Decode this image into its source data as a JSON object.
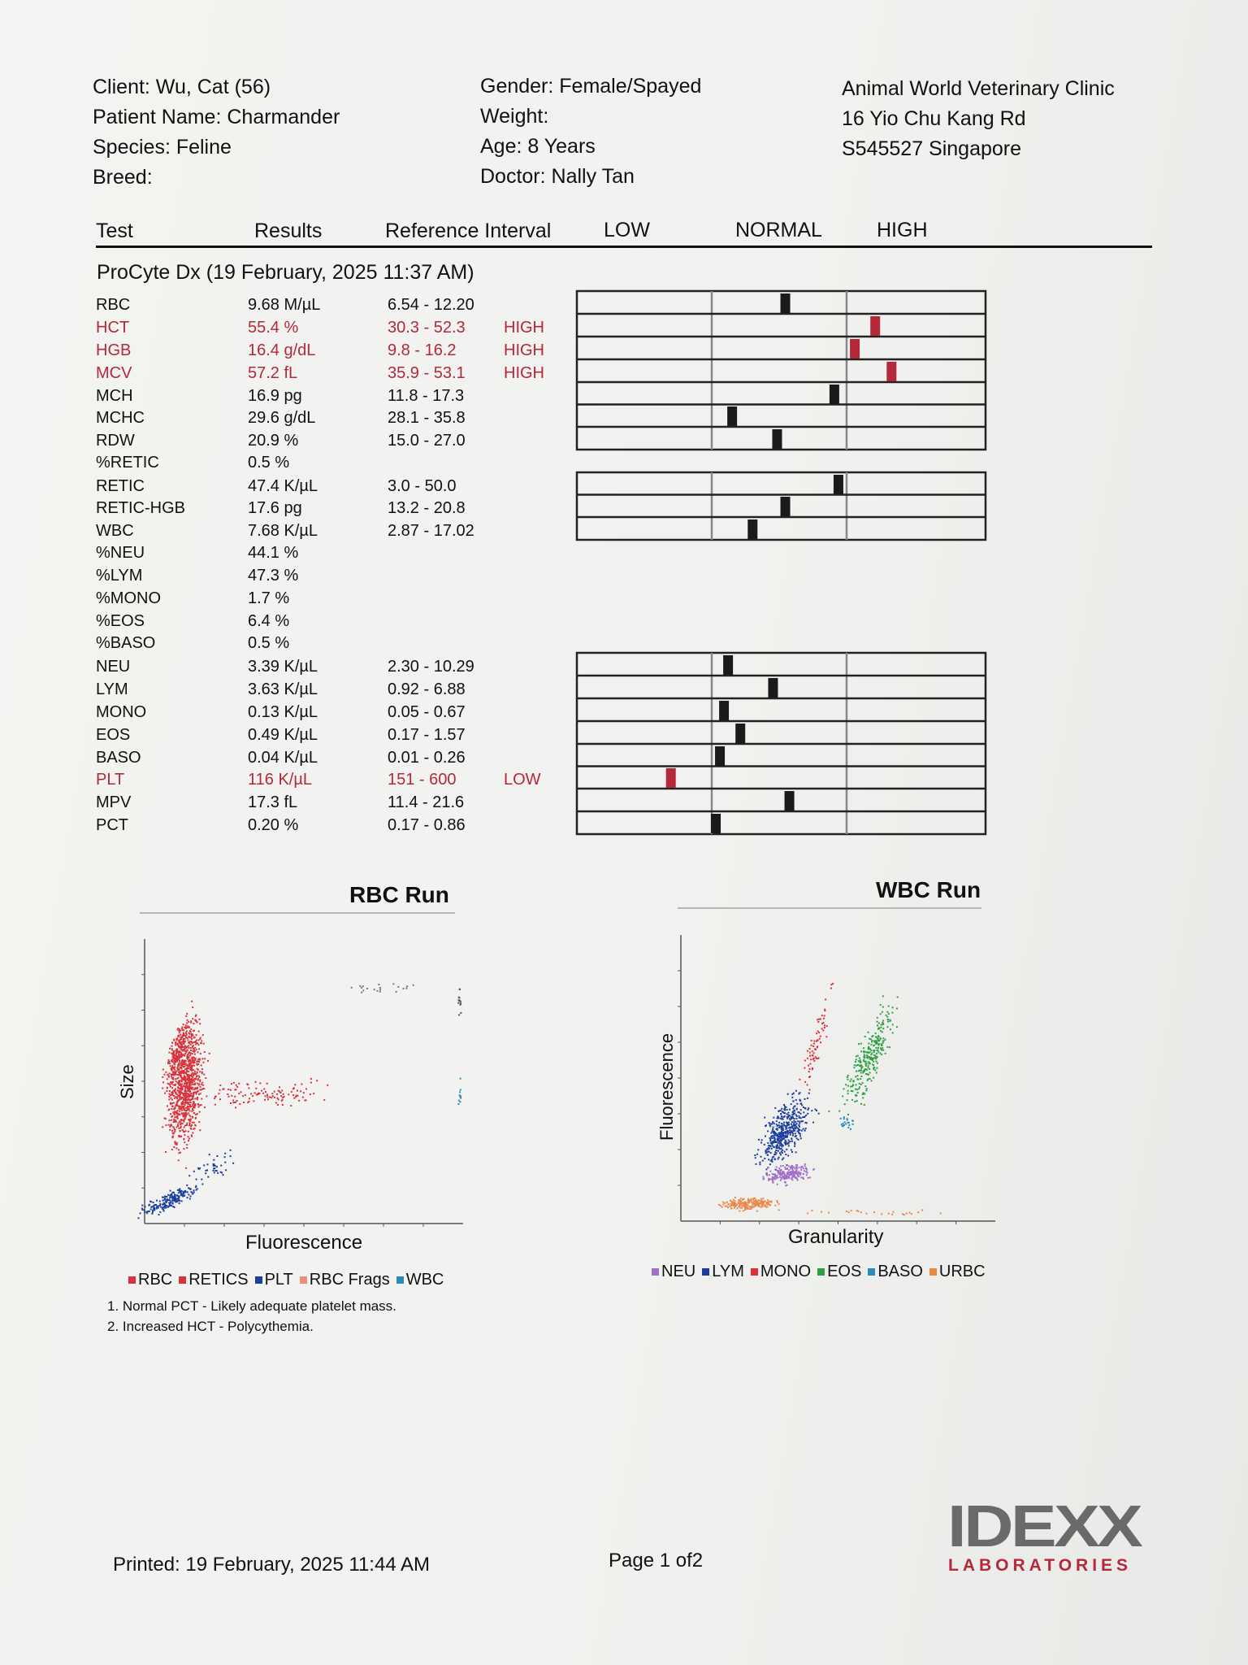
{
  "header": {
    "client": "Client: Wu, Cat (56)",
    "patient": "Patient Name: Charmander",
    "species": "Species: Feline",
    "breed": "Breed:",
    "gender": "Gender: Female/Spayed",
    "weight": "Weight:",
    "age": "Age: 8 Years",
    "doctor": "Doctor: Nally Tan",
    "clinic_name": "Animal World Veterinary Clinic",
    "clinic_addr1": "16 Yio Chu Kang Rd",
    "clinic_addr2": "S545527 Singapore"
  },
  "columns": {
    "test": "Test",
    "results": "Results",
    "reference": "Reference Interval",
    "low": "LOW",
    "normal": "NORMAL",
    "high": "HIGH"
  },
  "section_title": "ProCyte Dx (19 February, 2025 11:37 AM)",
  "rows": [
    {
      "test": "RBC",
      "result": "9.68 M/µL",
      "range": "6.54 - 12.20",
      "flag": "",
      "marker": 0.51,
      "abnormal": false
    },
    {
      "test": "HCT",
      "result": "55.4 %",
      "range": "30.3 - 52.3",
      "flag": "HIGH",
      "marker": 0.73,
      "abnormal": true
    },
    {
      "test": "HGB",
      "result": "16.4 g/dL",
      "range": "9.8 - 16.2",
      "flag": "HIGH",
      "marker": 0.68,
      "abnormal": true
    },
    {
      "test": "MCV",
      "result": "57.2 fL",
      "range": "35.9 - 53.1",
      "flag": "HIGH",
      "marker": 0.77,
      "abnormal": true
    },
    {
      "test": "MCH",
      "result": "16.9 pg",
      "range": "11.8 - 17.3",
      "flag": "",
      "marker": 0.63,
      "abnormal": false
    },
    {
      "test": "MCHC",
      "result": "29.6 g/dL",
      "range": "28.1 - 35.8",
      "flag": "",
      "marker": 0.38,
      "abnormal": false
    },
    {
      "test": "RDW",
      "result": "20.9 %",
      "range": "15.0 - 27.0",
      "flag": "",
      "marker": 0.49,
      "abnormal": false
    },
    {
      "test": "%RETIC",
      "result": "0.5 %",
      "range": "",
      "flag": "",
      "marker": null,
      "abnormal": false
    },
    {
      "test": "RETIC",
      "result": "47.4 K/µL",
      "range": "3.0 - 50.0",
      "flag": "",
      "marker": 0.64,
      "abnormal": false
    },
    {
      "test": "RETIC-HGB",
      "result": "17.6 pg",
      "range": "13.2 - 20.8",
      "flag": "",
      "marker": 0.51,
      "abnormal": false
    },
    {
      "test": "WBC",
      "result": "7.68 K/µL",
      "range": "2.87 - 17.02",
      "flag": "",
      "marker": 0.43,
      "abnormal": false
    },
    {
      "test": "%NEU",
      "result": "44.1 %",
      "range": "",
      "flag": "",
      "marker": null,
      "abnormal": false
    },
    {
      "test": "%LYM",
      "result": "47.3 %",
      "range": "",
      "flag": "",
      "marker": null,
      "abnormal": false
    },
    {
      "test": "%MONO",
      "result": "1.7 %",
      "range": "",
      "flag": "",
      "marker": null,
      "abnormal": false
    },
    {
      "test": "%EOS",
      "result": "6.4 %",
      "range": "",
      "flag": "",
      "marker": null,
      "abnormal": false
    },
    {
      "test": "%BASO",
      "result": "0.5 %",
      "range": "",
      "flag": "",
      "marker": null,
      "abnormal": false
    },
    {
      "test": "NEU",
      "result": "3.39 K/µL",
      "range": "2.30 - 10.29",
      "flag": "",
      "marker": 0.37,
      "abnormal": false
    },
    {
      "test": "LYM",
      "result": "3.63 K/µL",
      "range": "0.92 - 6.88",
      "flag": "",
      "marker": 0.48,
      "abnormal": false
    },
    {
      "test": "MONO",
      "result": "0.13 K/µL",
      "range": "0.05 - 0.67",
      "flag": "",
      "marker": 0.36,
      "abnormal": false
    },
    {
      "test": "EOS",
      "result": "0.49 K/µL",
      "range": "0.17 - 1.57",
      "flag": "",
      "marker": 0.4,
      "abnormal": false
    },
    {
      "test": "BASO",
      "result": "0.04 K/µL",
      "range": "0.01 - 0.26",
      "flag": "",
      "marker": 0.35,
      "abnormal": false
    },
    {
      "test": "PLT",
      "result": "116 K/µL",
      "range": "151 - 600",
      "flag": "LOW",
      "marker": 0.23,
      "abnormal": true
    },
    {
      "test": "MPV",
      "result": "17.3 fL",
      "range": "11.4 - 21.6",
      "flag": "",
      "marker": 0.52,
      "abnormal": false
    },
    {
      "test": "PCT",
      "result": "0.20 %",
      "range": "0.17 - 0.86",
      "flag": "",
      "marker": 0.34,
      "abnormal": false
    }
  ],
  "rbc_run": {
    "title": "RBC Run",
    "x_label": "Fluorescence",
    "y_label": "Size",
    "legend": [
      {
        "label": "RBC",
        "color": "#d8323c"
      },
      {
        "label": "RETICS",
        "color": "#d8323c"
      },
      {
        "label": "PLT",
        "color": "#1c3e9c"
      },
      {
        "label": "RBC Frags",
        "color": "#e8907a"
      },
      {
        "label": "WBC",
        "color": "#2a8ab8"
      }
    ]
  },
  "wbc_run": {
    "title": "WBC Run",
    "x_label": "Granularity",
    "y_label": "Fluorescence",
    "legend": [
      {
        "label": "NEU",
        "color": "#a070c8"
      },
      {
        "label": "LYM",
        "color": "#1c3e9c"
      },
      {
        "label": "MONO",
        "color": "#d8323c"
      },
      {
        "label": "EOS",
        "color": "#2ea043"
      },
      {
        "label": "BASO",
        "color": "#2a8ab8"
      },
      {
        "label": "URBC",
        "color": "#e8884a"
      }
    ]
  },
  "notes": [
    "1. Normal PCT - Likely adequate platelet mass.",
    "2. Increased HCT - Polycythemia."
  ],
  "footer": {
    "printed": "Printed: 19 February, 2025 11:44 AM",
    "page": "Page 1 of2",
    "logo_main": "IDEXX",
    "logo_sub": "LABORATORIES"
  },
  "colors": {
    "accent_red": "#b4283a",
    "marker_dark": "#1a1a1a",
    "logo_gray": "#6a6a6a"
  }
}
